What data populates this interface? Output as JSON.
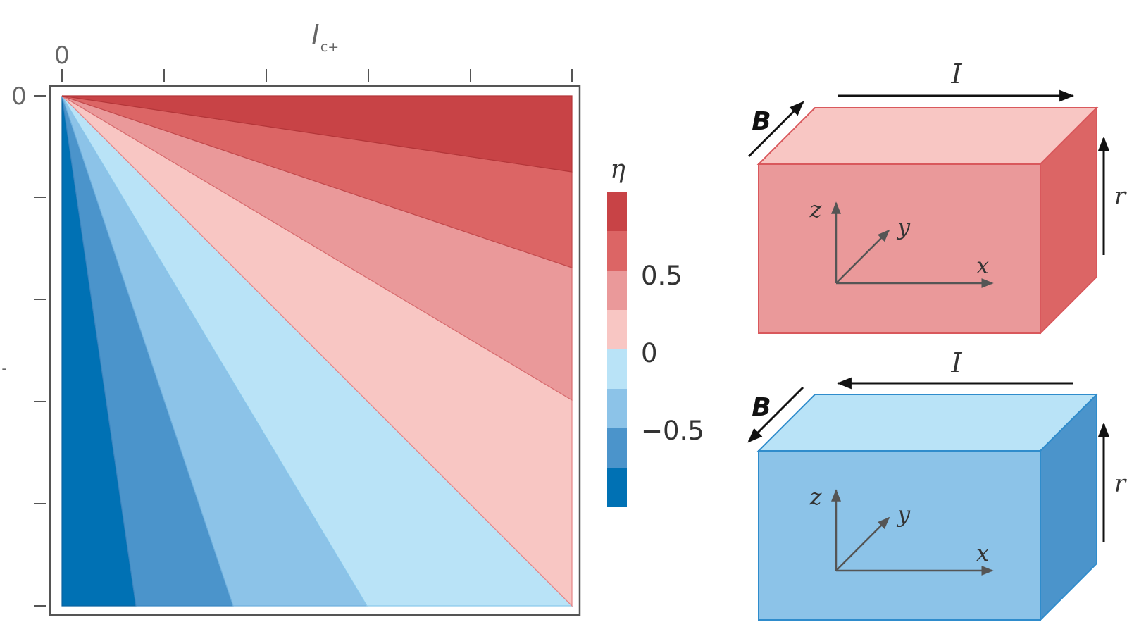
{
  "colors": {
    "band_neg_4": "#0071b4",
    "band_neg_3": "#4b94cb",
    "band_neg_2": "#8cc3e8",
    "band_neg_1": "#b9e3f7",
    "band_pos_1": "#f8c6c3",
    "band_pos_2": "#ea999a",
    "band_pos_3": "#dc6565",
    "band_pos_4": "#c84346",
    "red_top": "#f8c6c3",
    "red_front": "#ea999a",
    "red_side": "#dc6565",
    "red_edge": "#d9585c",
    "blue_top": "#b9e3f7",
    "blue_front": "#8cc3e8",
    "blue_side": "#4b94cb",
    "blue_edge": "#2f8ccc"
  },
  "contour_plot": {
    "x_axis_label_main": "I",
    "x_axis_label_sub": "c+",
    "x_origin_label": "0",
    "y_origin_label": "0",
    "y_axis_label_fragment": "-",
    "n_x_ticks": 6,
    "n_y_ticks": 6
  },
  "colorbar": {
    "title": "η",
    "tick_labels": [
      {
        "label": "0.5",
        "value": 0.5
      },
      {
        "label": "0",
        "value": 0
      },
      {
        "label": "−0.5",
        "value": -0.5
      }
    ],
    "range": [
      -1,
      1
    ],
    "n_levels": 8
  },
  "top_box": {
    "current_label": "I",
    "field_label": "B",
    "r_label": "r",
    "axis_x": "x",
    "axis_y": "y",
    "axis_z": "z",
    "current_direction": "right",
    "field_direction": "up-right"
  },
  "bottom_box": {
    "current_label": "I",
    "field_label": "B",
    "r_label": "r",
    "axis_x": "x",
    "axis_y": "y",
    "axis_z": "z",
    "current_direction": "left",
    "field_direction": "down-left"
  }
}
